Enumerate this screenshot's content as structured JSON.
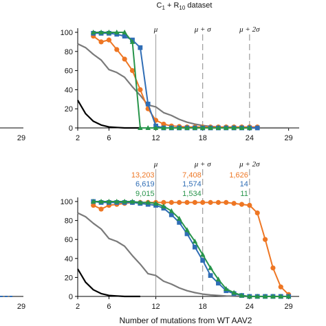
{
  "figure": {
    "xlabel": "Number of mutations from WT AAV2",
    "left_tick_label": "29"
  },
  "colors": {
    "orange": "#EE7623",
    "blue": "#2F6DB5",
    "green": "#27944A",
    "gray": "#7A7A7A",
    "black": "#000000"
  },
  "chart_data": [
    {
      "type": "line",
      "title": "C",
      "title_sub1": "1",
      "title_mid": " + R",
      "title_sub2": "10",
      "title_tail": " dataset",
      "xlim": [
        2,
        30
      ],
      "ylim": [
        0,
        100
      ],
      "xticks": [
        "2",
        "6",
        "12",
        "18",
        "24",
        "29"
      ],
      "xtick_values": [
        2,
        6,
        12,
        18,
        24,
        29
      ],
      "yticks": [
        "0",
        "20",
        "40",
        "60",
        "80",
        "100"
      ],
      "vlines": [
        {
          "label": "μ",
          "x": 12,
          "style": "solid"
        },
        {
          "label": "μ + σ",
          "x": 18,
          "style": "dashed"
        },
        {
          "label": "μ + 2σ",
          "x": 24,
          "style": "dashed"
        }
      ],
      "series": [
        {
          "color_key": "black",
          "marker": "none",
          "x": [
            2,
            3,
            4,
            5,
            6,
            7,
            8,
            9,
            10
          ],
          "y": [
            29,
            15,
            7,
            3,
            1,
            0.5,
            0,
            0,
            0
          ]
        },
        {
          "color_key": "gray",
          "marker": "none",
          "x": [
            2,
            3,
            4,
            5,
            6,
            7,
            8,
            9,
            10,
            11,
            12,
            13,
            14,
            15,
            16,
            17,
            18,
            19,
            20,
            21,
            22,
            23,
            24,
            25,
            26,
            27,
            28,
            29
          ],
          "y": [
            88,
            84,
            77,
            71,
            61,
            58,
            53,
            43,
            34,
            24,
            22,
            16,
            13,
            9,
            6,
            4,
            2.5,
            1.5,
            1,
            0.5,
            0.3,
            0,
            0,
            0,
            0,
            0,
            0,
            0
          ]
        },
        {
          "color_key": "orange",
          "marker": "circle",
          "x": [
            4,
            5,
            6,
            7,
            8,
            9,
            10,
            11,
            12,
            13,
            14,
            15,
            16,
            17,
            18,
            19,
            20,
            21,
            22,
            23,
            24,
            25
          ],
          "y": [
            96,
            90,
            92,
            82,
            72,
            60,
            40,
            20,
            8,
            4,
            2,
            1.5,
            1,
            1,
            1,
            1,
            1,
            1,
            1,
            1,
            1,
            1
          ]
        },
        {
          "color_key": "blue",
          "marker": "square",
          "x": [
            4,
            5,
            6,
            7,
            8,
            9,
            10,
            11,
            12,
            13,
            14,
            15,
            16,
            17,
            18,
            19,
            20,
            21,
            22,
            23,
            24,
            25
          ],
          "y": [
            99,
            99,
            99,
            98,
            96,
            92,
            84,
            25,
            2,
            0,
            0,
            0,
            0,
            0,
            0,
            0,
            0,
            0,
            0,
            0,
            0,
            0
          ]
        },
        {
          "color_key": "green",
          "marker": "triangle",
          "x": [
            4,
            5,
            6,
            7,
            8,
            9,
            10,
            11,
            12,
            13,
            14,
            15,
            16,
            17,
            18,
            19,
            20,
            21,
            22,
            23,
            24
          ],
          "y": [
            100,
            100,
            100,
            100,
            100,
            90,
            0,
            0,
            0,
            0,
            0,
            0,
            0,
            0,
            0,
            0,
            0,
            0,
            0,
            0,
            0
          ]
        }
      ]
    },
    {
      "type": "line",
      "xlim": [
        2,
        30
      ],
      "ylim": [
        0,
        100
      ],
      "xticks": [
        "2",
        "6",
        "12",
        "18",
        "24",
        "29"
      ],
      "xtick_values": [
        2,
        6,
        12,
        18,
        24,
        29
      ],
      "yticks": [
        "0",
        "20",
        "40",
        "60",
        "80",
        "100"
      ],
      "vlines": [
        {
          "label": "μ",
          "x": 12,
          "style": "solid"
        },
        {
          "label": "μ + σ",
          "x": 18,
          "style": "dashed"
        },
        {
          "label": "μ + 2σ",
          "x": 24,
          "style": "dashed"
        }
      ],
      "counts": [
        {
          "color_key": "orange",
          "values": [
            "13,203",
            "7,408",
            "1,626"
          ]
        },
        {
          "color_key": "blue",
          "values": [
            "6,619",
            "1,574",
            "14"
          ]
        },
        {
          "color_key": "green",
          "values": [
            "9,015",
            "1,534",
            "11"
          ]
        }
      ],
      "series": [
        {
          "color_key": "black",
          "marker": "none",
          "x": [
            2,
            3,
            4,
            5,
            6,
            7,
            8,
            9,
            10
          ],
          "y": [
            29,
            15,
            7,
            3,
            1,
            0.5,
            0,
            0,
            0
          ]
        },
        {
          "color_key": "gray",
          "marker": "none",
          "x": [
            2,
            3,
            4,
            5,
            6,
            7,
            8,
            9,
            10,
            11,
            12,
            13,
            14,
            15,
            16,
            17,
            18,
            19,
            20,
            21,
            22,
            23,
            24,
            25,
            26,
            27,
            28,
            29
          ],
          "y": [
            88,
            84,
            77,
            71,
            61,
            58,
            53,
            43,
            34,
            24,
            22,
            16,
            13,
            9,
            6,
            4,
            2.5,
            1.5,
            1,
            0.5,
            0.3,
            0,
            0,
            0,
            0,
            0,
            0,
            0
          ]
        },
        {
          "color_key": "orange",
          "marker": "circle",
          "x": [
            4,
            5,
            6,
            7,
            8,
            9,
            10,
            11,
            12,
            13,
            14,
            15,
            16,
            17,
            18,
            19,
            20,
            21,
            22,
            23,
            24,
            25,
            26,
            27,
            28,
            29
          ],
          "y": [
            96,
            92,
            96,
            97,
            98,
            99,
            99,
            99,
            99,
            99,
            99,
            99,
            99,
            99,
            99,
            99,
            99,
            99,
            98,
            97,
            96,
            88,
            60,
            30,
            10,
            2
          ]
        },
        {
          "color_key": "blue",
          "marker": "square",
          "x": [
            4,
            5,
            6,
            7,
            8,
            9,
            10,
            11,
            12,
            13,
            14,
            15,
            16,
            17,
            18,
            19,
            20,
            21,
            22,
            23,
            24,
            25,
            26,
            27,
            28,
            29
          ],
          "y": [
            100,
            99,
            99,
            99,
            99,
            99,
            98,
            97,
            96,
            93,
            86,
            78,
            66,
            52,
            38,
            22,
            14,
            6,
            3,
            1,
            0,
            0,
            0,
            0,
            0,
            0
          ]
        },
        {
          "color_key": "green",
          "marker": "triangle",
          "x": [
            4,
            5,
            6,
            7,
            8,
            9,
            10,
            11,
            12,
            13,
            14,
            15,
            16,
            17,
            18,
            19,
            20,
            21,
            22,
            23,
            24,
            25,
            26,
            27,
            28,
            29
          ],
          "y": [
            100,
            100,
            100,
            100,
            100,
            100,
            99,
            99,
            98,
            95,
            90,
            82,
            70,
            58,
            44,
            30,
            18,
            8,
            4,
            1,
            0,
            0,
            0,
            0,
            0,
            0
          ]
        }
      ]
    }
  ]
}
